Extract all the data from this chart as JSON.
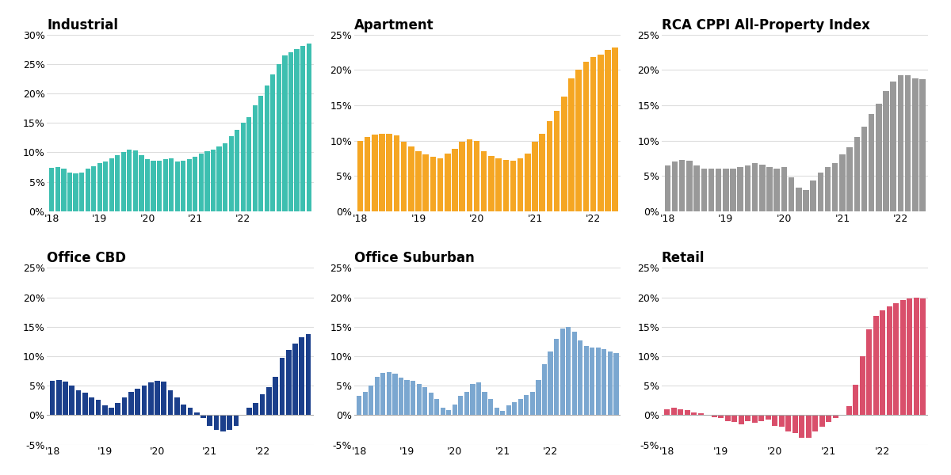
{
  "industrial": {
    "title": "Industrial",
    "color": "#3DBFB0",
    "ylim": [
      0,
      0.3
    ],
    "yticks": [
      0,
      0.05,
      0.1,
      0.15,
      0.2,
      0.25,
      0.3
    ],
    "values": [
      0.074,
      0.075,
      0.073,
      0.066,
      0.064,
      0.065,
      0.072,
      0.077,
      0.082,
      0.085,
      0.09,
      0.095,
      0.1,
      0.105,
      0.103,
      0.095,
      0.088,
      0.086,
      0.086,
      0.088,
      0.09,
      0.085,
      0.086,
      0.088,
      0.093,
      0.098,
      0.102,
      0.105,
      0.11,
      0.115,
      0.127,
      0.138,
      0.15,
      0.16,
      0.18,
      0.196,
      0.213,
      0.232,
      0.25,
      0.265,
      0.27,
      0.275,
      0.281,
      0.285
    ]
  },
  "apartment": {
    "title": "Apartment",
    "color": "#F5A623",
    "ylim": [
      0,
      0.25
    ],
    "yticks": [
      0,
      0.05,
      0.1,
      0.15,
      0.2,
      0.25
    ],
    "values": [
      0.1,
      0.105,
      0.108,
      0.11,
      0.11,
      0.107,
      0.098,
      0.092,
      0.085,
      0.08,
      0.077,
      0.075,
      0.082,
      0.088,
      0.098,
      0.102,
      0.1,
      0.085,
      0.078,
      0.075,
      0.073,
      0.072,
      0.075,
      0.082,
      0.098,
      0.11,
      0.128,
      0.142,
      0.162,
      0.188,
      0.2,
      0.212,
      0.218,
      0.222,
      0.228,
      0.232
    ]
  },
  "rca": {
    "title": "RCA CPPI All-Property Index",
    "color": "#999999",
    "ylim": [
      0,
      0.25
    ],
    "yticks": [
      0,
      0.05,
      0.1,
      0.15,
      0.2,
      0.25
    ],
    "values": [
      0.065,
      0.07,
      0.073,
      0.072,
      0.065,
      0.06,
      0.06,
      0.06,
      0.06,
      0.06,
      0.062,
      0.065,
      0.068,
      0.066,
      0.062,
      0.06,
      0.062,
      0.048,
      0.033,
      0.03,
      0.044,
      0.055,
      0.062,
      0.068,
      0.08,
      0.09,
      0.105,
      0.12,
      0.138,
      0.152,
      0.17,
      0.183,
      0.193,
      0.193,
      0.188,
      0.187
    ]
  },
  "office_cbd": {
    "title": "Office CBD",
    "color": "#1B3F8B",
    "ylim": [
      -0.05,
      0.25
    ],
    "yticks": [
      -0.05,
      0,
      0.05,
      0.1,
      0.15,
      0.2,
      0.25
    ],
    "values": [
      0.058,
      0.06,
      0.057,
      0.05,
      0.042,
      0.038,
      0.03,
      0.026,
      0.017,
      0.013,
      0.02,
      0.03,
      0.04,
      0.045,
      0.05,
      0.055,
      0.058,
      0.057,
      0.042,
      0.03,
      0.018,
      0.012,
      0.005,
      -0.005,
      -0.018,
      -0.025,
      -0.028,
      -0.025,
      -0.018,
      0.0,
      0.013,
      0.021,
      0.035,
      0.048,
      0.065,
      0.097,
      0.11,
      0.122,
      0.132,
      0.138
    ]
  },
  "office_suburban": {
    "title": "Office Suburban",
    "color": "#7BA7D0",
    "ylim": [
      -0.05,
      0.25
    ],
    "yticks": [
      -0.05,
      0,
      0.05,
      0.1,
      0.15,
      0.2,
      0.25
    ],
    "values": [
      0.033,
      0.04,
      0.05,
      0.065,
      0.072,
      0.073,
      0.07,
      0.064,
      0.06,
      0.058,
      0.053,
      0.047,
      0.038,
      0.028,
      0.013,
      0.008,
      0.018,
      0.033,
      0.04,
      0.053,
      0.055,
      0.04,
      0.027,
      0.013,
      0.007,
      0.016,
      0.022,
      0.028,
      0.034,
      0.04,
      0.06,
      0.087,
      0.108,
      0.13,
      0.147,
      0.149,
      0.142,
      0.127,
      0.118,
      0.115,
      0.115,
      0.112,
      0.108,
      0.105
    ]
  },
  "retail": {
    "title": "Retail",
    "color": "#D94F6B",
    "ylim": [
      -0.05,
      0.25
    ],
    "yticks": [
      -0.05,
      0,
      0.05,
      0.1,
      0.15,
      0.2,
      0.25
    ],
    "values": [
      0.01,
      0.012,
      0.01,
      0.008,
      0.005,
      0.003,
      0.0,
      -0.003,
      -0.005,
      -0.01,
      -0.012,
      -0.015,
      -0.01,
      -0.013,
      -0.01,
      -0.008,
      -0.018,
      -0.02,
      -0.028,
      -0.03,
      -0.038,
      -0.038,
      -0.028,
      -0.02,
      -0.012,
      -0.005,
      0.0,
      0.015,
      0.052,
      0.1,
      0.145,
      0.168,
      0.178,
      0.185,
      0.19,
      0.195,
      0.198,
      0.2,
      0.198
    ]
  },
  "background_color": "#ffffff",
  "grid_color": "#dddddd",
  "title_fontsize": 12,
  "tick_fontsize": 9,
  "xlabel_years": [
    "'18",
    "'19",
    "'20",
    "'21",
    "'22"
  ],
  "bars_per_year": 8
}
